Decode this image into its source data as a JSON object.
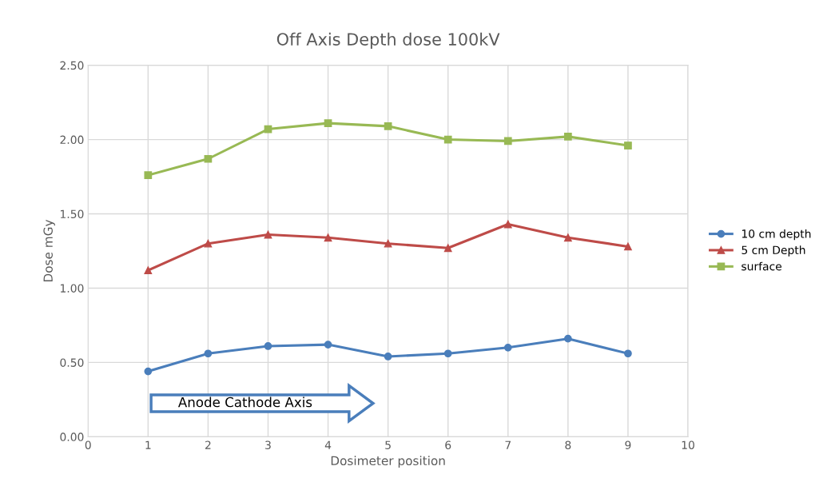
{
  "chart_data": {
    "type": "line",
    "title": "Off Axis Depth dose 100kV",
    "xlabel": "Dosimeter position",
    "ylabel": "Dose mGy",
    "x": [
      1,
      2,
      3,
      4,
      5,
      6,
      7,
      8,
      9
    ],
    "series": [
      {
        "name": "10 cm depth",
        "color": "#4a7ebb",
        "marker": "circle",
        "values": [
          0.44,
          0.56,
          0.61,
          0.62,
          0.54,
          0.56,
          0.6,
          0.66,
          0.56
        ]
      },
      {
        "name": "5 cm Depth",
        "color": "#be4b48",
        "marker": "triangle",
        "values": [
          1.12,
          1.3,
          1.36,
          1.34,
          1.3,
          1.27,
          1.43,
          1.34,
          1.28
        ]
      },
      {
        "name": "surface",
        "color": "#98b954",
        "marker": "square",
        "values": [
          1.76,
          1.87,
          2.07,
          2.11,
          2.09,
          2.0,
          1.99,
          2.02,
          1.96
        ]
      }
    ],
    "xlim": [
      0,
      10
    ],
    "xticks": [
      0,
      1,
      2,
      3,
      4,
      5,
      6,
      7,
      8,
      9,
      10
    ],
    "ylim": [
      0,
      2.5
    ],
    "yticks": [
      {
        "value": 0,
        "label": "0.00"
      },
      {
        "value": 0.5,
        "label": "0.50"
      },
      {
        "value": 1,
        "label": "1.00"
      },
      {
        "value": 1.5,
        "label": "1.50"
      },
      {
        "value": 2,
        "label": "2.00"
      },
      {
        "value": 2.5,
        "label": "2.50"
      }
    ],
    "grid": true,
    "legend": "right",
    "line_style": "solid",
    "annotations": [
      "Anode Cathode Axis"
    ]
  }
}
